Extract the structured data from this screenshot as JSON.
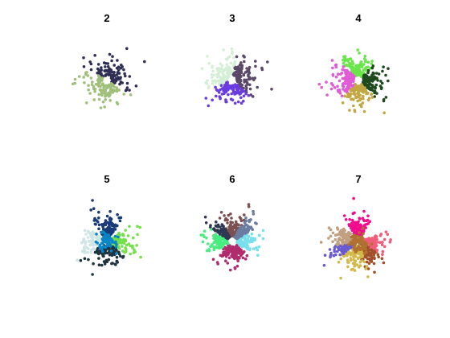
{
  "chart_data": [
    {
      "type": "scatter",
      "title": "2",
      "series": [
        {
          "color": "#2f2f55",
          "angle_range": [
            -30,
            150
          ]
        },
        {
          "color": "#9fbf7a",
          "angle_range": [
            150,
            330
          ]
        }
      ]
    },
    {
      "type": "scatter",
      "title": "3",
      "series": [
        {
          "color": "#d4efd6",
          "angle_range": [
            80,
            200
          ]
        },
        {
          "color": "#5a4868",
          "angle_range": [
            -40,
            80
          ]
        },
        {
          "color": "#6a3ce0",
          "angle_range": [
            200,
            320
          ]
        }
      ]
    },
    {
      "type": "scatter",
      "title": "4",
      "series": [
        {
          "color": "#6ae64a",
          "angle_range": [
            45,
            135
          ]
        },
        {
          "color": "#1f4a1f",
          "angle_range": [
            -45,
            45
          ]
        },
        {
          "color": "#c2a842",
          "angle_range": [
            225,
            315
          ]
        },
        {
          "color": "#e05cd6",
          "angle_range": [
            135,
            225
          ]
        }
      ]
    },
    {
      "type": "scatter",
      "title": "5",
      "series": [
        {
          "color": "#1a3a78",
          "angle_range": [
            55,
            125
          ]
        },
        {
          "color": "#74e04a",
          "angle_range": [
            -35,
            35
          ]
        },
        {
          "color": "#1e3540",
          "angle_range": [
            215,
            325
          ]
        },
        {
          "color": "#cfe6e4",
          "angle_range": [
            145,
            215
          ]
        },
        {
          "color": "#0a86c8",
          "angle_range": [
            0,
            360
          ],
          "center": true
        }
      ]
    },
    {
      "type": "scatter",
      "title": "6",
      "series": [
        {
          "color": "#7a5050",
          "angle_range": [
            60,
            120
          ]
        },
        {
          "color": "#78e0ec",
          "angle_range": [
            -30,
            30
          ]
        },
        {
          "color": "#b02c6c",
          "angle_range": [
            220,
            320
          ]
        },
        {
          "color": "#4aec80",
          "angle_range": [
            150,
            210
          ]
        },
        {
          "color": "#6a7ca0",
          "angle_range": [
            30,
            60
          ]
        },
        {
          "color": "#2e3852",
          "angle_range": [
            120,
            150
          ]
        }
      ]
    },
    {
      "type": "scatter",
      "title": "7",
      "series": [
        {
          "color": "#f00c8c",
          "angle_range": [
            60,
            120
          ]
        },
        {
          "color": "#f05c7a",
          "angle_range": [
            -30,
            20
          ]
        },
        {
          "color": "#a05028",
          "angle_range": [
            -80,
            -30
          ]
        },
        {
          "color": "#d4b84a",
          "angle_range": [
            220,
            290
          ]
        },
        {
          "color": "#6a5ad0",
          "angle_range": [
            190,
            220
          ]
        },
        {
          "color": "#c0a080",
          "angle_range": [
            135,
            190
          ]
        },
        {
          "color": "#b07030",
          "angle_range": [
            0,
            360
          ],
          "center": true
        }
      ]
    }
  ]
}
